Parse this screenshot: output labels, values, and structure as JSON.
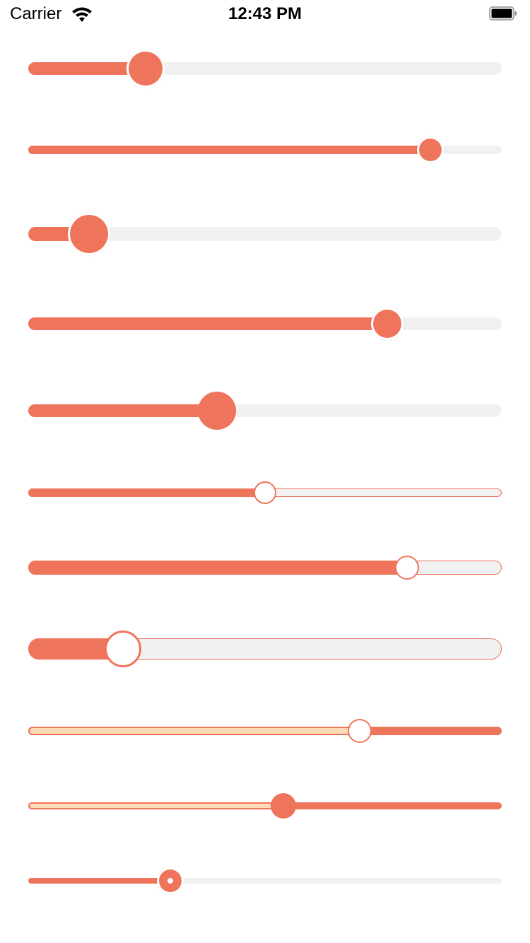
{
  "status_bar": {
    "carrier": "Carrier",
    "time": "12:43 PM"
  },
  "theme": {
    "accent": "#ef745c",
    "track": "#f1f1f1",
    "light_fill": "#ffdcb6",
    "thumb_white": "#ffffff"
  },
  "sliders": [
    {
      "value": 0.248
    },
    {
      "value": 0.849
    },
    {
      "value": 0.128
    },
    {
      "value": 0.758
    },
    {
      "value": 0.399
    },
    {
      "value": 0.5
    },
    {
      "value": 0.8
    },
    {
      "value": 0.2
    },
    {
      "value": 0.7
    },
    {
      "value": 0.539
    },
    {
      "value": 0.3
    }
  ]
}
